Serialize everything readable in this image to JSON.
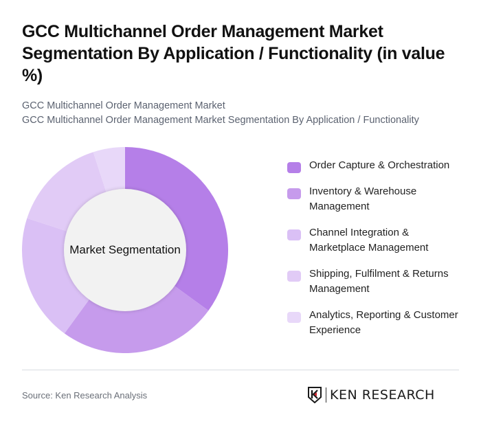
{
  "title": "GCC Multichannel Order Management Market Segmentation By Application / Functionality (in value %)",
  "subtitle": {
    "line1": "GCC Multichannel Order Management Market",
    "line2": "GCC Multichannel Order Management Market Segmentation By Application / Functionality"
  },
  "center_label": "Market Segmentation",
  "legend": [
    {
      "label": "Order Capture & Orchestration",
      "color": "#B57FE8"
    },
    {
      "label": "Inventory & Warehouse Management",
      "color": "#C69BEC"
    },
    {
      "label": "Channel Integration & Marketplace Management",
      "color": "#DAC0F5"
    },
    {
      "label": "Shipping, Fulfilment & Returns Management",
      "color": "#E1CBF6"
    },
    {
      "label": "Analytics, Reporting & Customer Experience",
      "color": "#E8D8F9"
    }
  ],
  "footer": {
    "source": "Source: Ken Research Analysis",
    "logo_text": "KEN RESEARCH"
  },
  "chart_data": {
    "type": "pie",
    "subtype": "donut",
    "title": "GCC Multichannel Order Management Market Segmentation By Application / Functionality (in value %)",
    "center_label": "Market Segmentation",
    "categories": [
      "Order Capture & Orchestration",
      "Inventory & Warehouse Management",
      "Channel Integration & Marketplace Management",
      "Shipping, Fulfilment & Returns Management",
      "Analytics, Reporting & Customer Experience"
    ],
    "values": [
      35,
      25,
      20,
      15,
      5
    ],
    "colors": [
      "#B57FE8",
      "#C69BEC",
      "#DAC0F5",
      "#E1CBF6",
      "#E8D8F9"
    ],
    "start_angle": "12 o'clock, clockwise",
    "legend_position": "right"
  }
}
